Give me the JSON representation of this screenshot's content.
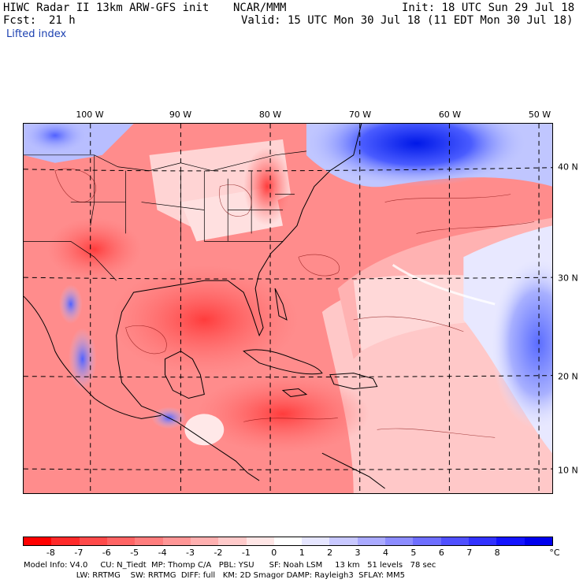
{
  "header": {
    "title": "HIWC Radar II 13km ARW-GFS init",
    "org": "NCAR/MMM",
    "init": "Init: 18 UTC Sun 29 Jul 18",
    "fcst_label": "Fcst:",
    "fcst_value": "21 h",
    "valid": "Valid: 15 UTC Mon 30 Jul 18 (11 EDT Mon 30 Jul 18)",
    "field": "Lifted index"
  },
  "map": {
    "longitude_labels": [
      "100 W",
      "90 W",
      "80 W",
      "70 W",
      "60 W",
      "50 W"
    ],
    "latitude_labels": [
      "40 N",
      "30 N",
      "20 N",
      "10 N"
    ]
  },
  "colorbar": {
    "tick_labels": [
      "-8",
      "-7",
      "-6",
      "-5",
      "-4",
      "-3",
      "-2",
      "-1",
      "0",
      "1",
      "2",
      "3",
      "4",
      "5",
      "6",
      "7",
      "8"
    ],
    "unit": "°C",
    "colors": [
      "#ff0000",
      "#ff2a2a",
      "#ff4a4a",
      "#ff6464",
      "#ff7d7d",
      "#ff9696",
      "#ffb0b0",
      "#ffcaca",
      "#ffe6e6",
      "#ffffff",
      "#e6e6ff",
      "#c8c8ff",
      "#aaaaff",
      "#8c8cff",
      "#6e6eff",
      "#5050ff",
      "#3232ff",
      "#1414ff",
      "#0000ee"
    ]
  },
  "footer": {
    "line1": "Model Info: V4.0     CU: N_Tiedt  MP: Thomp C/A   PBL: YSU      SF: Noah LSM     13 km   51 levels   78 sec",
    "line2": "                     LW: RRTMG    SW: RRTMG  DIFF: full   KM: 2D Smagor DAMP: Rayleigh3  SFLAY: MM5"
  }
}
